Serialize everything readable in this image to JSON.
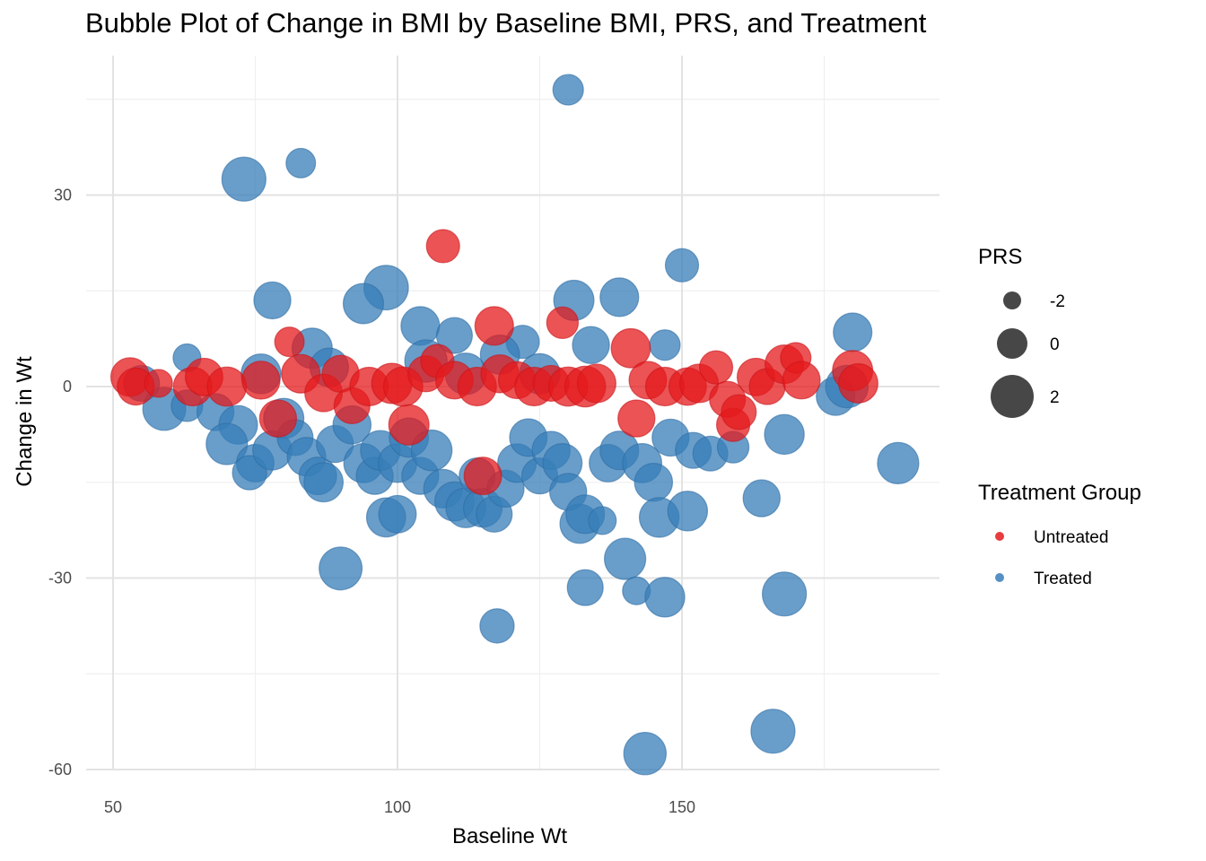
{
  "chart_data": {
    "type": "scatter",
    "title": "Bubble Plot of Change in BMI by Baseline BMI, PRS, and Treatment",
    "xlabel": "Baseline Wt",
    "ylabel": "Change in Wt",
    "xlim": [
      50,
      193
    ],
    "ylim": [
      -62,
      48
    ],
    "x_ticks": [
      50,
      100,
      150
    ],
    "x_tick_labels": [
      "50",
      "100",
      "150"
    ],
    "y_ticks": [
      -60,
      -30,
      0,
      30
    ],
    "y_tick_labels": [
      "-60",
      "-30",
      "0",
      "30"
    ],
    "grid": true,
    "legend_position": "right",
    "size_legend": {
      "title": "PRS",
      "entries": [
        {
          "label": "-2",
          "value": -2
        },
        {
          "label": "0",
          "value": 0
        },
        {
          "label": "2",
          "value": 2
        }
      ]
    },
    "color_legend": {
      "title": "Treatment Group",
      "entries": [
        {
          "label": "Untreated",
          "color": "#E41A1C"
        },
        {
          "label": "Treated",
          "color": "#377EB8"
        }
      ]
    },
    "series": [
      {
        "name": "Treated",
        "color": "#377EB8",
        "points": [
          {
            "x": 130,
            "y": 46.5,
            "prs": -1.0
          },
          {
            "x": 83,
            "y": 35,
            "prs": -1.2
          },
          {
            "x": 73,
            "y": 32.5,
            "prs": 1.5
          },
          {
            "x": 150,
            "y": 19,
            "prs": -0.5
          },
          {
            "x": 78,
            "y": 13.5,
            "prs": 0.2
          },
          {
            "x": 131,
            "y": 13.5,
            "prs": 0.8
          },
          {
            "x": 139,
            "y": 14,
            "prs": 0.5
          },
          {
            "x": 98,
            "y": 15.5,
            "prs": 1.6
          },
          {
            "x": 94,
            "y": 13,
            "prs": 0.8
          },
          {
            "x": 180,
            "y": 8.5,
            "prs": 0.5
          },
          {
            "x": 63,
            "y": 4.5,
            "prs": -1.5
          },
          {
            "x": 147,
            "y": 6.5,
            "prs": -1.0
          },
          {
            "x": 104,
            "y": 9.5,
            "prs": 0.5
          },
          {
            "x": 85,
            "y": 6,
            "prs": 0.8
          },
          {
            "x": 110,
            "y": 8,
            "prs": 0.0
          },
          {
            "x": 122,
            "y": 7,
            "prs": -0.5
          },
          {
            "x": 134,
            "y": 6.5,
            "prs": 0.2
          },
          {
            "x": 55,
            "y": 0.5,
            "prs": 0.0
          },
          {
            "x": 59,
            "y": -3.5,
            "prs": 1.3
          },
          {
            "x": 63,
            "y": -3,
            "prs": -0.8
          },
          {
            "x": 68,
            "y": -4,
            "prs": 0.2
          },
          {
            "x": 72,
            "y": -6,
            "prs": 0.5
          },
          {
            "x": 70,
            "y": -9,
            "prs": 1.0
          },
          {
            "x": 75,
            "y": -12,
            "prs": 0.3
          },
          {
            "x": 74,
            "y": -13.5,
            "prs": -0.3
          },
          {
            "x": 78,
            "y": -10,
            "prs": 0.6
          },
          {
            "x": 80,
            "y": -5,
            "prs": 0.8
          },
          {
            "x": 82,
            "y": -8,
            "prs": 0.0
          },
          {
            "x": 84,
            "y": -11,
            "prs": 0.5
          },
          {
            "x": 86,
            "y": -14,
            "prs": 0.3
          },
          {
            "x": 87,
            "y": -15,
            "prs": 0.6
          },
          {
            "x": 89,
            "y": -9,
            "prs": 0.2
          },
          {
            "x": 90,
            "y": -28.5,
            "prs": 1.3
          },
          {
            "x": 92,
            "y": -6,
            "prs": 0.4
          },
          {
            "x": 94,
            "y": -12,
            "prs": 0.6
          },
          {
            "x": 96,
            "y": -14,
            "prs": 0.2
          },
          {
            "x": 97,
            "y": -10,
            "prs": 0.7
          },
          {
            "x": 98,
            "y": -20.5,
            "prs": 0.6
          },
          {
            "x": 100,
            "y": -20,
            "prs": 0.3
          },
          {
            "x": 100,
            "y": -12,
            "prs": 0.5
          },
          {
            "x": 102,
            "y": -8,
            "prs": 0.6
          },
          {
            "x": 104,
            "y": -14,
            "prs": 0.2
          },
          {
            "x": 106,
            "y": -10,
            "prs": 0.9
          },
          {
            "x": 108,
            "y": -16,
            "prs": 0.5
          },
          {
            "x": 110,
            "y": -18,
            "prs": 0.6
          },
          {
            "x": 112,
            "y": -19,
            "prs": 0.7
          },
          {
            "x": 114,
            "y": -14,
            "prs": 0.0
          },
          {
            "x": 115,
            "y": -19,
            "prs": 0.5
          },
          {
            "x": 117,
            "y": -20,
            "prs": 0.0
          },
          {
            "x": 117.5,
            "y": -37.5,
            "prs": -0.3
          },
          {
            "x": 119,
            "y": -16,
            "prs": 0.2
          },
          {
            "x": 121,
            "y": -12,
            "prs": 0.5
          },
          {
            "x": 123,
            "y": -8,
            "prs": 0.3
          },
          {
            "x": 125,
            "y": -14,
            "prs": 0.0
          },
          {
            "x": 127,
            "y": -10,
            "prs": 0.4
          },
          {
            "x": 129,
            "y": -12,
            "prs": 0.6
          },
          {
            "x": 130,
            "y": -16.5,
            "prs": 0.2
          },
          {
            "x": 132,
            "y": -21.5,
            "prs": 0.6
          },
          {
            "x": 133,
            "y": -20,
            "prs": 0.5
          },
          {
            "x": 133,
            "y": -31.5,
            "prs": 0.0
          },
          {
            "x": 136,
            "y": -21,
            "prs": -1.5
          },
          {
            "x": 137,
            "y": -12,
            "prs": 0.3
          },
          {
            "x": 139,
            "y": -10,
            "prs": 0.5
          },
          {
            "x": 140,
            "y": -27,
            "prs": 1.0
          },
          {
            "x": 142,
            "y": -32,
            "prs": -1.5
          },
          {
            "x": 143,
            "y": -12,
            "prs": 0.6
          },
          {
            "x": 145,
            "y": -15,
            "prs": 0.4
          },
          {
            "x": 146,
            "y": -20.5,
            "prs": 0.7
          },
          {
            "x": 147,
            "y": -33,
            "prs": 0.7
          },
          {
            "x": 148,
            "y": -8,
            "prs": 0.2
          },
          {
            "x": 151,
            "y": -19.5,
            "prs": 0.7
          },
          {
            "x": 152,
            "y": -10,
            "prs": 0.0
          },
          {
            "x": 155,
            "y": -10.5,
            "prs": -0.2
          },
          {
            "x": 159,
            "y": -9.5,
            "prs": -0.8
          },
          {
            "x": 164,
            "y": -17.5,
            "prs": 0.2
          },
          {
            "x": 168,
            "y": -7.5,
            "prs": 0.7
          },
          {
            "x": 168,
            "y": -32.5,
            "prs": 1.5
          },
          {
            "x": 166,
            "y": -54,
            "prs": 1.5
          },
          {
            "x": 143.5,
            "y": -57.5,
            "prs": 1.2
          },
          {
            "x": 177,
            "y": -1.5,
            "prs": 0.5
          },
          {
            "x": 179,
            "y": 0,
            "prs": 1.2
          },
          {
            "x": 188,
            "y": -12,
            "prs": 1.0
          },
          {
            "x": 105,
            "y": 4,
            "prs": 1.2
          },
          {
            "x": 112,
            "y": 2,
            "prs": 1.0
          },
          {
            "x": 118,
            "y": 5,
            "prs": 0.6
          },
          {
            "x": 125,
            "y": 2,
            "prs": 0.8
          },
          {
            "x": 88,
            "y": 3,
            "prs": 0.5
          },
          {
            "x": 76,
            "y": 2,
            "prs": 0.7
          }
        ]
      },
      {
        "name": "Untreated",
        "color": "#E41A1C",
        "points": [
          {
            "x": 108,
            "y": 22,
            "prs": -0.5
          },
          {
            "x": 117,
            "y": 9.5,
            "prs": 0.5
          },
          {
            "x": 129,
            "y": 10,
            "prs": -0.8
          },
          {
            "x": 53,
            "y": 1.5,
            "prs": 0.5
          },
          {
            "x": 54,
            "y": 0,
            "prs": 0.2
          },
          {
            "x": 58,
            "y": 0.5,
            "prs": -1.5
          },
          {
            "x": 64,
            "y": 0,
            "prs": 0.5
          },
          {
            "x": 66,
            "y": 1.5,
            "prs": 0.3
          },
          {
            "x": 70,
            "y": 0,
            "prs": 0.6
          },
          {
            "x": 76,
            "y": 1,
            "prs": 0.4
          },
          {
            "x": 79,
            "y": -5,
            "prs": 0.2
          },
          {
            "x": 81,
            "y": 7,
            "prs": -1.2
          },
          {
            "x": 83,
            "y": 2,
            "prs": 0.5
          },
          {
            "x": 87,
            "y": -1,
            "prs": 0.3
          },
          {
            "x": 90,
            "y": 2,
            "prs": 0.2
          },
          {
            "x": 92,
            "y": -3,
            "prs": 0.0
          },
          {
            "x": 95,
            "y": 0,
            "prs": 0.5
          },
          {
            "x": 99,
            "y": 0.5,
            "prs": 0.8
          },
          {
            "x": 101,
            "y": 0,
            "prs": 0.6
          },
          {
            "x": 102,
            "y": -6,
            "prs": 0.8
          },
          {
            "x": 105,
            "y": 2,
            "prs": 0.0
          },
          {
            "x": 107,
            "y": 4,
            "prs": -0.5
          },
          {
            "x": 110,
            "y": 1,
            "prs": 0.3
          },
          {
            "x": 114,
            "y": 0,
            "prs": 0.5
          },
          {
            "x": 115,
            "y": -14,
            "prs": 0.3
          },
          {
            "x": 118,
            "y": 2,
            "prs": 0.4
          },
          {
            "x": 121,
            "y": 1,
            "prs": 0.2
          },
          {
            "x": 124,
            "y": 0,
            "prs": 0.5
          },
          {
            "x": 127,
            "y": 0.5,
            "prs": 0.0
          },
          {
            "x": 130,
            "y": 0,
            "prs": 0.6
          },
          {
            "x": 133,
            "y": 0,
            "prs": 0.9
          },
          {
            "x": 135,
            "y": 0.5,
            "prs": 0.5
          },
          {
            "x": 141,
            "y": 6,
            "prs": 0.6
          },
          {
            "x": 142,
            "y": -5,
            "prs": 0.2
          },
          {
            "x": 144,
            "y": 1,
            "prs": 0.3
          },
          {
            "x": 147,
            "y": 0,
            "prs": 0.5
          },
          {
            "x": 151,
            "y": 0,
            "prs": 0.3
          },
          {
            "x": 153,
            "y": 0.5,
            "prs": 0.5
          },
          {
            "x": 156,
            "y": 3,
            "prs": -0.5
          },
          {
            "x": 158,
            "y": -2,
            "prs": 0.0
          },
          {
            "x": 159,
            "y": -6,
            "prs": -0.5
          },
          {
            "x": 160,
            "y": -4,
            "prs": -0.2
          },
          {
            "x": 163,
            "y": 1.5,
            "prs": 0.3
          },
          {
            "x": 165,
            "y": 0,
            "prs": 0.0
          },
          {
            "x": 168,
            "y": 3.5,
            "prs": 0.5
          },
          {
            "x": 170,
            "y": 4.5,
            "prs": -1.0
          },
          {
            "x": 171,
            "y": 1,
            "prs": 0.3
          },
          {
            "x": 180,
            "y": 2.5,
            "prs": 0.8
          },
          {
            "x": 181,
            "y": 0.5,
            "prs": 0.6
          }
        ]
      }
    ]
  }
}
